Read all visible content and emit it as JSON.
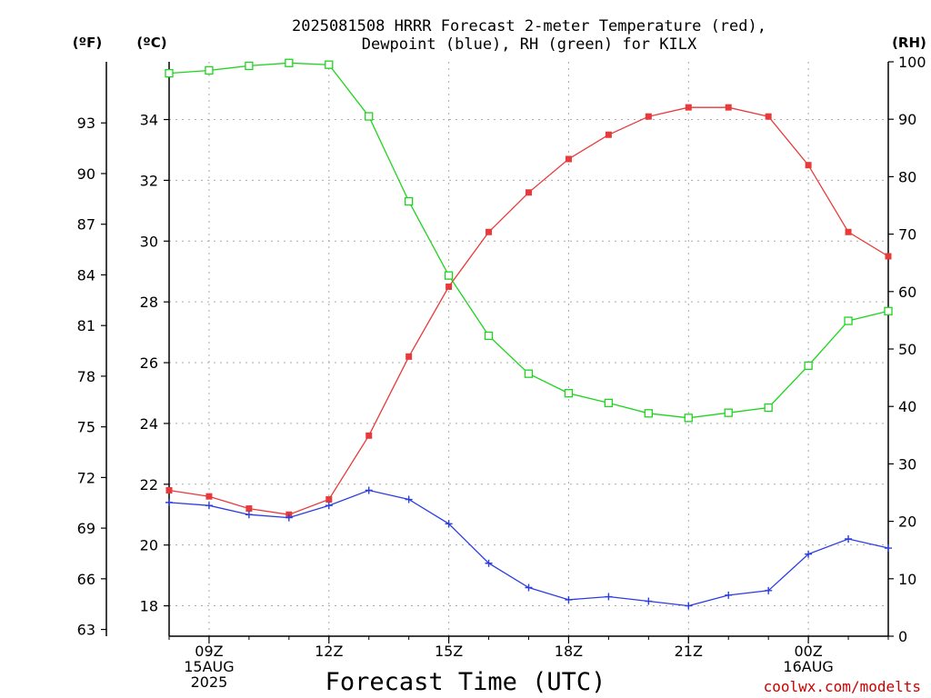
{
  "chart_data": {
    "type": "line",
    "title_line1": "2025081508 HRRR Forecast 2-meter Temperature (red),",
    "title_line2": "Dewpoint (blue), RH (green) for KILX",
    "xlabel": "Forecast Time (UTC)",
    "credit": "coolwx.com/modelts",
    "unit_left_f": "(ºF)",
    "unit_left_c": "(ºC)",
    "unit_right": "(RH)",
    "x_hours": [
      8,
      9,
      10,
      11,
      12,
      13,
      14,
      15,
      16,
      17,
      18,
      19,
      20,
      21,
      22,
      23,
      24,
      25,
      26
    ],
    "x_ticks": [
      {
        "hour": 9,
        "lines": [
          "09Z",
          "15AUG",
          "2025"
        ]
      },
      {
        "hour": 12,
        "lines": [
          "12Z"
        ]
      },
      {
        "hour": 15,
        "lines": [
          "15Z"
        ]
      },
      {
        "hour": 18,
        "lines": [
          "18Z"
        ]
      },
      {
        "hour": 21,
        "lines": [
          "21Z"
        ]
      },
      {
        "hour": 24,
        "lines": [
          "00Z",
          "16AUG"
        ]
      }
    ],
    "xlim": [
      8,
      26
    ],
    "celsius_ticks": [
      18,
      20,
      22,
      24,
      26,
      28,
      30,
      32,
      34
    ],
    "celsius_lim": [
      17.0,
      35.9
    ],
    "fahrenheit_ticks": [
      63,
      66,
      69,
      72,
      75,
      78,
      81,
      84,
      87,
      90,
      93
    ],
    "rh_ticks": [
      0,
      10,
      20,
      30,
      40,
      50,
      60,
      70,
      80,
      90,
      100
    ],
    "rh_lim": [
      0,
      100
    ],
    "colors": {
      "temperature": "#e83a3a",
      "dewpoint": "#2b3de0",
      "rh": "#1ed41e",
      "credit": "#cc0000"
    },
    "series": [
      {
        "name": "Temperature",
        "axis": "celsius",
        "marker": "filled-square",
        "values": [
          21.8,
          21.6,
          21.2,
          21.0,
          21.5,
          23.6,
          26.2,
          28.5,
          30.3,
          31.6,
          32.7,
          33.5,
          34.1,
          34.4,
          34.4,
          34.1,
          32.5,
          30.3,
          29.5
        ]
      },
      {
        "name": "Dewpoint",
        "axis": "celsius",
        "marker": "plus",
        "values": [
          21.4,
          21.3,
          21.0,
          20.9,
          21.3,
          21.8,
          21.5,
          20.7,
          19.4,
          18.6,
          18.2,
          18.3,
          18.15,
          18.0,
          18.35,
          18.5,
          19.7,
          20.2,
          19.9
        ]
      },
      {
        "name": "RH",
        "axis": "rh",
        "marker": "open-square",
        "values": [
          98,
          98.5,
          99.3,
          99.8,
          99.5,
          90.5,
          75.7,
          62.8,
          52.3,
          45.7,
          42.3,
          40.6,
          38.8,
          38.0,
          38.9,
          39.8,
          47.1,
          54.9,
          56.6
        ]
      }
    ]
  }
}
